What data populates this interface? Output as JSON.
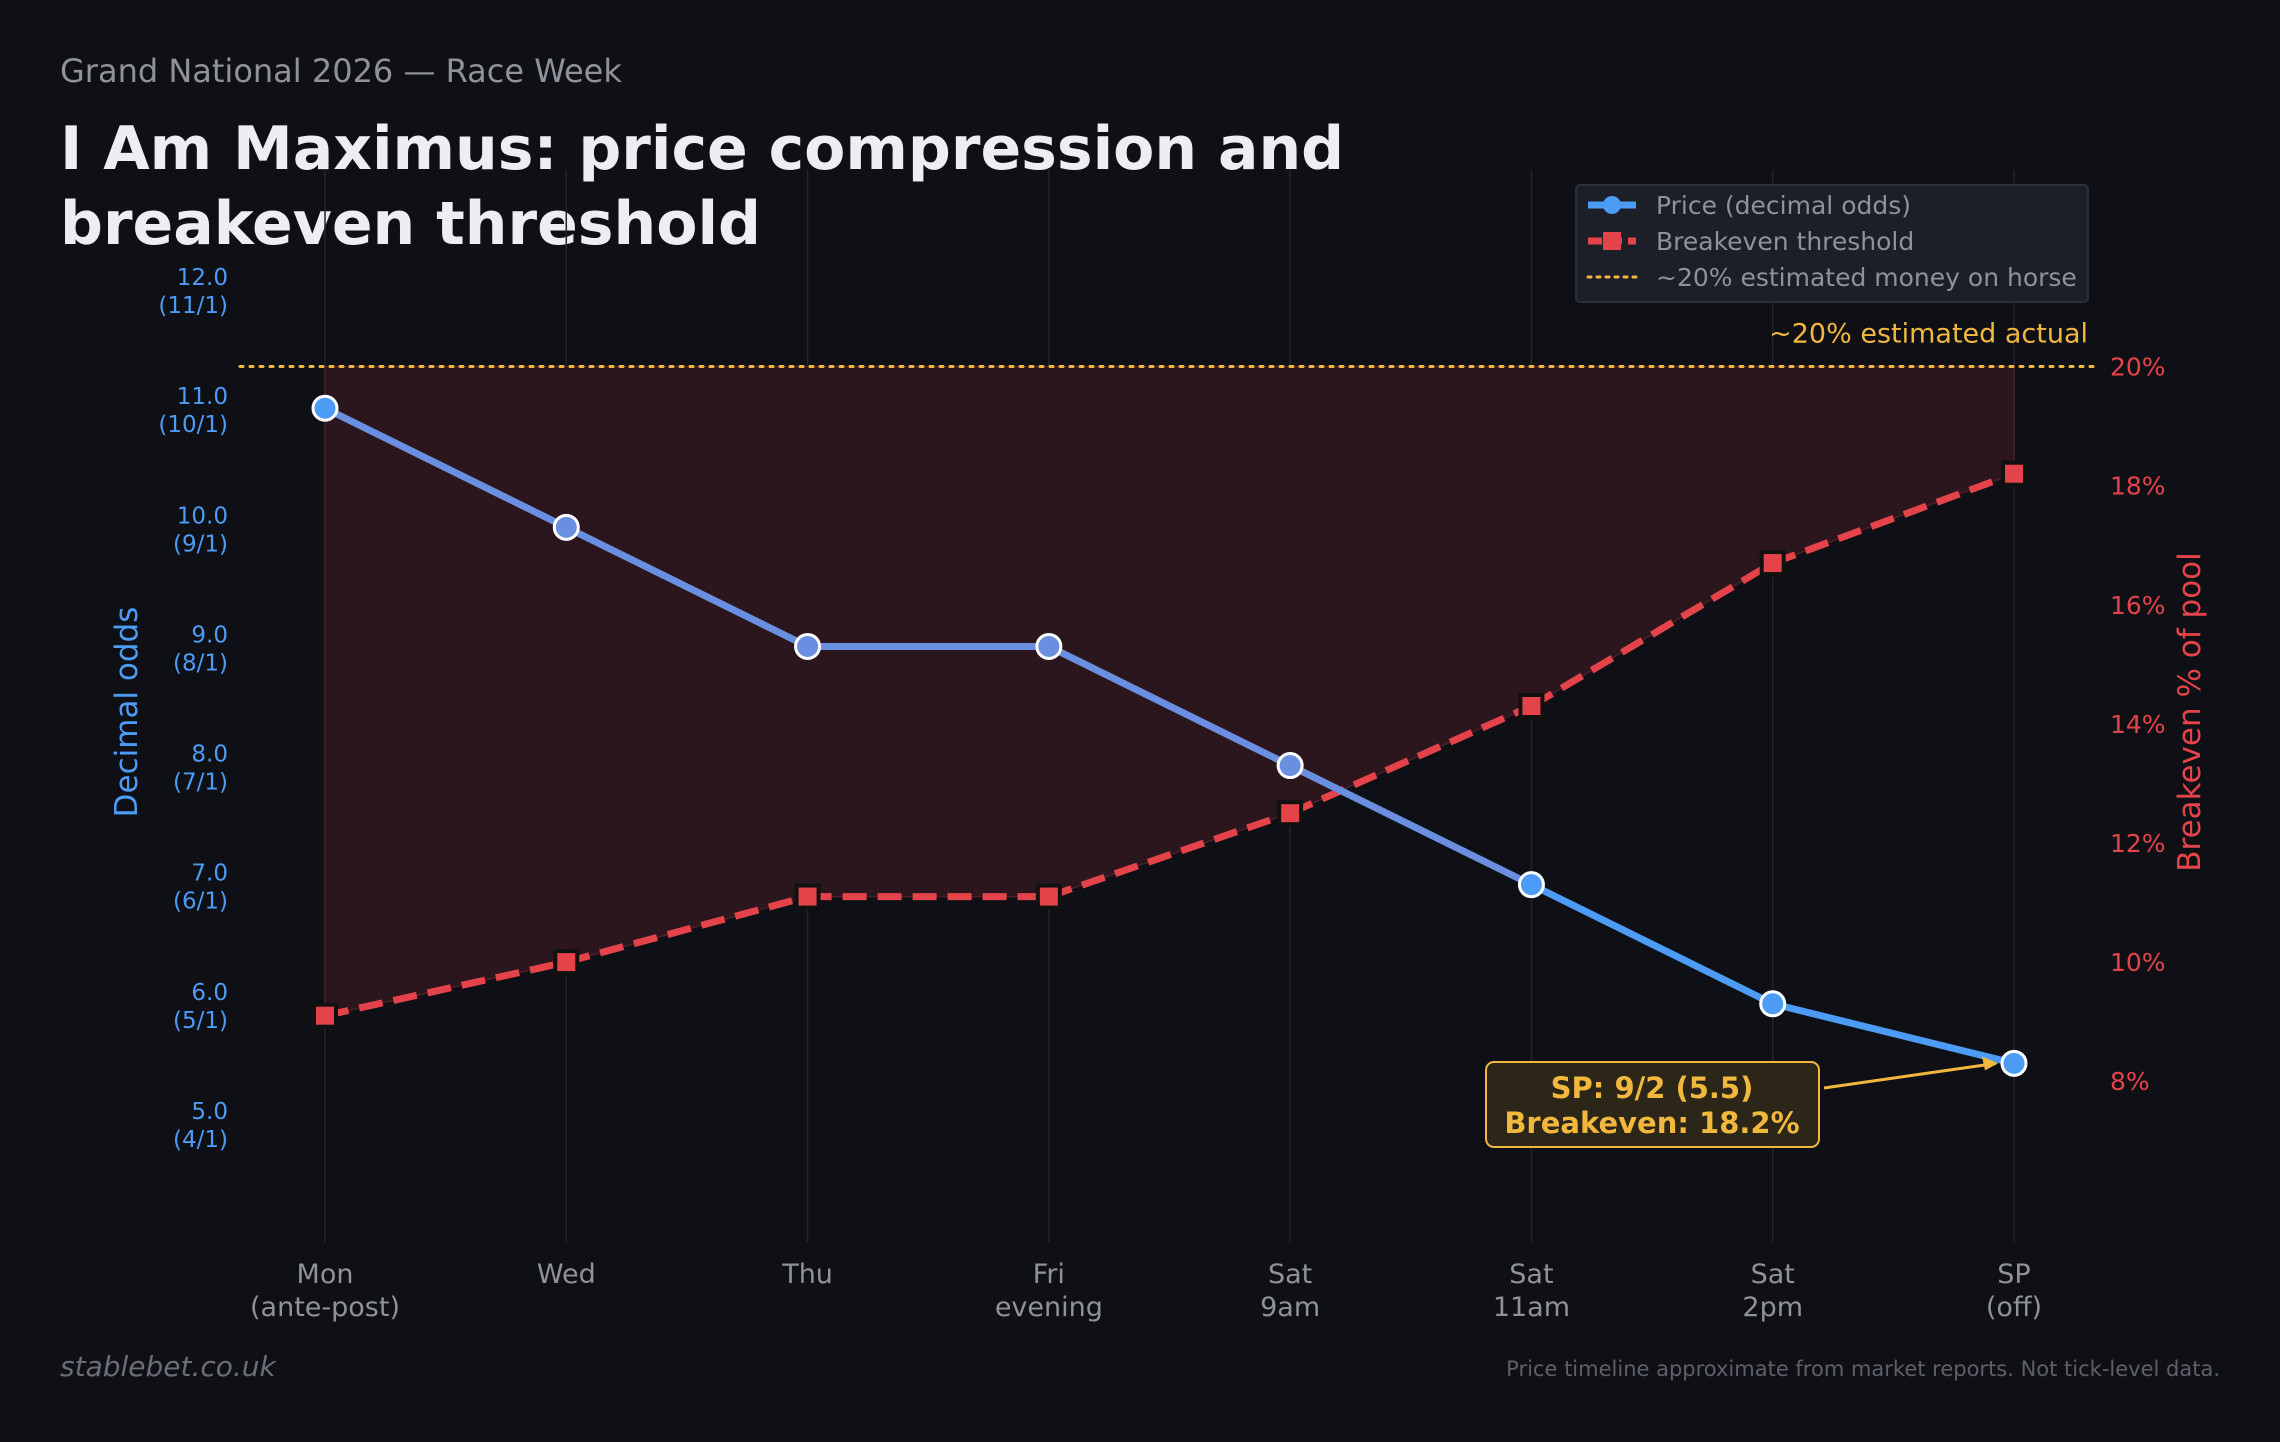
{
  "header": {
    "kicker": "Grand National 2026 — Race Week",
    "title": "I Am Maximus: price compression and breakeven threshold"
  },
  "footer": {
    "brand": "stablebet.co.uk",
    "note": "Price timeline approximate from market reports. Not tick-level data."
  },
  "colors": {
    "price": "#4c9bf5",
    "breakeven": "#e5434a",
    "reference": "#f2b83e",
    "fill": "#2e171f",
    "grid": "#22242c",
    "text_muted": "#8f9299"
  },
  "chart_data": {
    "type": "line",
    "categories": [
      [
        "Mon",
        "(ante-post)"
      ],
      [
        "Wed"
      ],
      [
        "Thu"
      ],
      [
        "Fri",
        "evening"
      ],
      [
        "Sat",
        "9am"
      ],
      [
        "Sat",
        "11am"
      ],
      [
        "Sat",
        "2pm"
      ],
      [
        "SP",
        "(off)"
      ]
    ],
    "y_left": {
      "label": "Decimal odds",
      "ticks": [
        5,
        6,
        7,
        8,
        9,
        10,
        11,
        12
      ],
      "tick_labels": [
        [
          "5.0",
          "(4/1)"
        ],
        [
          "6.0",
          "(5/1)"
        ],
        [
          "7.0",
          "(6/1)"
        ],
        [
          "8.0",
          "(7/1)"
        ],
        [
          "9.0",
          "(8/1)"
        ],
        [
          "10.0",
          "(9/1)"
        ],
        [
          "11.0",
          "(10/1)"
        ],
        [
          "12.0",
          "(11/1)"
        ]
      ],
      "range": [
        4.0,
        13.0
      ]
    },
    "y_right": {
      "label": "Breakeven % of pool",
      "ticks": [
        8,
        10,
        12,
        14,
        16,
        18,
        20
      ],
      "tick_labels": [
        "8%",
        "10%",
        "12%",
        "14%",
        "16%",
        "18%",
        "20%"
      ],
      "range": [
        5.3,
        23.3
      ]
    },
    "series": [
      {
        "name": "Price (decimal odds)",
        "axis": "left",
        "values": [
          11.0,
          10.0,
          9.0,
          9.0,
          8.0,
          7.0,
          6.0,
          5.5
        ]
      },
      {
        "name": "Breakeven threshold",
        "axis": "right",
        "values": [
          9.1,
          10.0,
          11.1,
          11.1,
          12.5,
          14.3,
          16.7,
          18.2
        ]
      }
    ],
    "reference_line": {
      "name": "~20% estimated money on horse",
      "value": 20,
      "axis": "right",
      "label": "~20% estimated actual"
    },
    "annotation": {
      "lines": [
        "SP: 9/2 (5.5)",
        "Breakeven: 18.2%"
      ],
      "target_index": 7
    },
    "legend": "top-right",
    "grid": "vertical"
  }
}
